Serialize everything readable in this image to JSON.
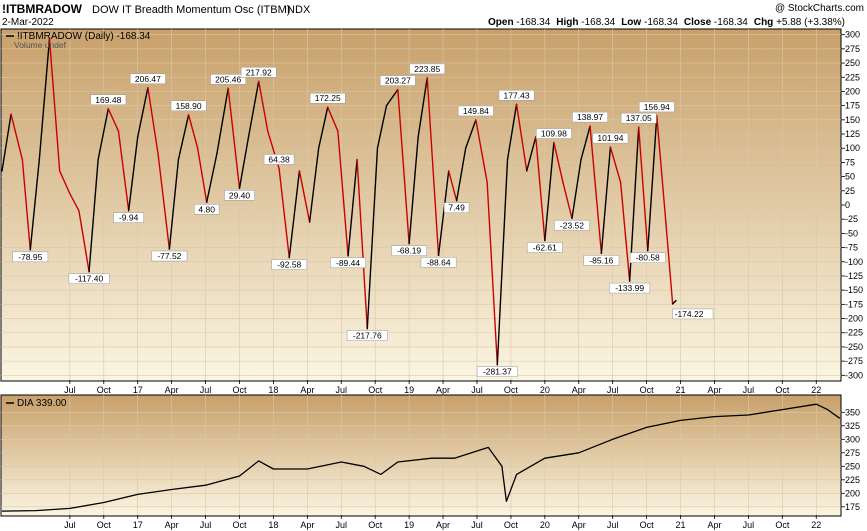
{
  "header": {
    "symbol": "!ITBMRADOW",
    "name": "DOW IT Breadth Momentum Osc (ITBM)",
    "exchange": "INDX",
    "date": "2-Mar-2022",
    "copyright": "@ StockCharts.com",
    "ohlc": "Open -168.34  High -168.34  Low -168.34  Close -168.34  Chg +5.88 (+3.38%)",
    "ohlc_parts": [
      {
        "label": "Open",
        "value": "-168.34"
      },
      {
        "label": "High",
        "value": "-168.34"
      },
      {
        "label": "Low",
        "value": "-168.34"
      },
      {
        "label": "Close",
        "value": "-168.34"
      },
      {
        "label": "Chg",
        "value": "+5.88 (+3.38%)"
      }
    ]
  },
  "colors": {
    "up": "#000000",
    "down": "#cc0000",
    "panel_top": "#c8a06a",
    "panel_bottom": "#fbf5e2",
    "grid": "#d9c9a6"
  },
  "chart_data": [
    {
      "type": "line",
      "legend": "!ITBMRADOW (Daily) -168.34",
      "legend_sub": "Volume undef",
      "ylim": [
        -310,
        310
      ],
      "y_ticks": [
        300,
        275,
        250,
        225,
        200,
        175,
        150,
        125,
        100,
        75,
        50,
        25,
        0,
        -25,
        -50,
        -75,
        -100,
        -125,
        -150,
        -175,
        -200,
        -225,
        -250,
        -275,
        -300
      ],
      "y_tick_labels": [
        "300",
        "275",
        "250",
        "225",
        "200",
        "175",
        "150",
        "125",
        "100",
        "75",
        "50",
        "25",
        "0",
        "-25",
        "-50",
        "-75",
        "-100",
        "-125",
        "-150",
        "-175",
        "-200",
        "-225",
        "-250",
        "-275",
        "-300"
      ],
      "x_tick_labels": [
        "Jul",
        "Oct",
        "17",
        "Apr",
        "Jul",
        "Oct",
        "18",
        "Apr",
        "Jul",
        "Oct",
        "19",
        "Apr",
        "Jul",
        "Oct",
        "20",
        "Apr",
        "Jul",
        "Oct",
        "21",
        "Apr",
        "Jul",
        "Oct",
        "22"
      ],
      "x_tick_months": [
        6,
        9,
        12,
        15,
        18,
        21,
        24,
        27,
        30,
        33,
        36,
        39,
        42,
        45,
        48,
        51,
        54,
        57,
        60,
        63,
        66,
        69,
        72
      ],
      "x_range_months": [
        0,
        74.1
      ],
      "points": [
        [
          0,
          60
        ],
        [
          0.8,
          160
        ],
        [
          1.8,
          80
        ],
        [
          2.5,
          -78.95
        ],
        [
          3.3,
          80
        ],
        [
          4.2,
          293
        ],
        [
          5.1,
          60
        ],
        [
          6,
          20
        ],
        [
          6.8,
          -10
        ],
        [
          7.7,
          -117.4
        ],
        [
          8.5,
          80
        ],
        [
          9.4,
          169.48
        ],
        [
          10.3,
          130
        ],
        [
          11.2,
          -9.94
        ],
        [
          12,
          120
        ],
        [
          12.9,
          206.47
        ],
        [
          13.8,
          90
        ],
        [
          14.8,
          -77.52
        ],
        [
          15.6,
          80
        ],
        [
          16.5,
          158.9
        ],
        [
          17.3,
          100
        ],
        [
          18.1,
          4.8
        ],
        [
          19,
          90
        ],
        [
          20,
          205.46
        ],
        [
          21,
          29.4
        ],
        [
          21.8,
          120
        ],
        [
          22.7,
          217.92
        ],
        [
          23.5,
          130
        ],
        [
          24.5,
          64.38
        ],
        [
          25.4,
          -92.58
        ],
        [
          26.3,
          60
        ],
        [
          27.2,
          -30
        ],
        [
          28,
          100
        ],
        [
          28.8,
          172.25
        ],
        [
          29.7,
          130
        ],
        [
          30.6,
          -89.44
        ],
        [
          31.4,
          80
        ],
        [
          32.3,
          -217.76
        ],
        [
          33.2,
          100
        ],
        [
          34,
          175
        ],
        [
          35,
          203.27
        ],
        [
          36,
          -68.19
        ],
        [
          36.8,
          120
        ],
        [
          37.6,
          223.85
        ],
        [
          38.6,
          -88.64
        ],
        [
          39.5,
          60
        ],
        [
          40.2,
          7.49
        ],
        [
          41,
          100
        ],
        [
          41.9,
          149.84
        ],
        [
          42.9,
          40
        ],
        [
          43.8,
          -281.37
        ],
        [
          44.7,
          80
        ],
        [
          45.5,
          177.43
        ],
        [
          46.4,
          60
        ],
        [
          47.2,
          120
        ],
        [
          48,
          -62.61
        ],
        [
          48.8,
          109.98
        ],
        [
          49.6,
          40
        ],
        [
          50.4,
          -23.52
        ],
        [
          51.2,
          80
        ],
        [
          52,
          138.97
        ],
        [
          53,
          -85.16
        ],
        [
          53.8,
          101.94
        ],
        [
          54.7,
          40
        ],
        [
          55.5,
          -133.99
        ],
        [
          56.3,
          137.05
        ],
        [
          57.1,
          -80.58
        ],
        [
          57.9,
          156.94
        ],
        [
          58.7,
          -30
        ],
        [
          59.3,
          -174.22
        ],
        [
          59.6,
          -168.34
        ]
      ],
      "labels": [
        {
          "text": "-78.95",
          "at": 2.5,
          "value": -78.95,
          "pos": "below"
        },
        {
          "text": "-117.40",
          "at": 7.7,
          "value": -117.4,
          "pos": "below"
        },
        {
          "text": "169.48",
          "at": 9.4,
          "value": 169.48,
          "pos": "above"
        },
        {
          "text": "-9.94",
          "at": 11.2,
          "value": -9.94,
          "pos": "below"
        },
        {
          "text": "206.47",
          "at": 12.9,
          "value": 206.47,
          "pos": "above"
        },
        {
          "text": "-77.52",
          "at": 14.8,
          "value": -77.52,
          "pos": "below"
        },
        {
          "text": "158.90",
          "at": 16.5,
          "value": 158.9,
          "pos": "above"
        },
        {
          "text": "4.80",
          "at": 18.1,
          "value": 4.8,
          "pos": "below"
        },
        {
          "text": "205.46",
          "at": 20,
          "value": 205.46,
          "pos": "above"
        },
        {
          "text": "29.40",
          "at": 21,
          "value": 29.4,
          "pos": "below"
        },
        {
          "text": "217.92",
          "at": 22.7,
          "value": 217.92,
          "pos": "above"
        },
        {
          "text": "64.38",
          "at": 24.5,
          "value": 64.38,
          "pos": "above"
        },
        {
          "text": "-92.58",
          "at": 25.4,
          "value": -92.58,
          "pos": "below"
        },
        {
          "text": "172.25",
          "at": 28.8,
          "value": 172.25,
          "pos": "above"
        },
        {
          "text": "-89.44",
          "at": 30.6,
          "value": -89.44,
          "pos": "below"
        },
        {
          "text": "-217.76",
          "at": 32.3,
          "value": -217.76,
          "pos": "below"
        },
        {
          "text": "203.27",
          "at": 35,
          "value": 203.27,
          "pos": "above"
        },
        {
          "text": "-68.19",
          "at": 36,
          "value": -68.19,
          "pos": "below"
        },
        {
          "text": "223.85",
          "at": 37.6,
          "value": 223.85,
          "pos": "above"
        },
        {
          "text": "-88.64",
          "at": 38.6,
          "value": -88.64,
          "pos": "below"
        },
        {
          "text": "7.49",
          "at": 40.2,
          "value": 7.49,
          "pos": "below"
        },
        {
          "text": "149.84",
          "at": 41.9,
          "value": 149.84,
          "pos": "above"
        },
        {
          "text": "-281.37",
          "at": 43.8,
          "value": -281.37,
          "pos": "below"
        },
        {
          "text": "177.43",
          "at": 45.5,
          "value": 177.43,
          "pos": "above"
        },
        {
          "text": "-62.61",
          "at": 48,
          "value": -62.61,
          "pos": "below"
        },
        {
          "text": "109.98",
          "at": 48.8,
          "value": 109.98,
          "pos": "above"
        },
        {
          "text": "-23.52",
          "at": 50.4,
          "value": -23.52,
          "pos": "below"
        },
        {
          "text": "138.97",
          "at": 52,
          "value": 138.97,
          "pos": "above"
        },
        {
          "text": "-85.16",
          "at": 53,
          "value": -85.16,
          "pos": "below"
        },
        {
          "text": "101.94",
          "at": 53.8,
          "value": 101.94,
          "pos": "above"
        },
        {
          "text": "-133.99",
          "at": 55.5,
          "value": -133.99,
          "pos": "below"
        },
        {
          "text": "137.05",
          "at": 56.3,
          "value": 137.05,
          "pos": "above"
        },
        {
          "text": "-80.58",
          "at": 57.1,
          "value": -80.58,
          "pos": "below"
        },
        {
          "text": "156.94",
          "at": 57.9,
          "value": 156.94,
          "pos": "above"
        },
        {
          "text": "-174.22",
          "at": 59.3,
          "value": -174.22,
          "pos": "right"
        }
      ],
      "grid": true
    },
    {
      "type": "line",
      "legend": "DIA 339.00",
      "ylim": [
        158,
        382
      ],
      "y_ticks": [
        350,
        325,
        300,
        275,
        250,
        225,
        200,
        175
      ],
      "y_tick_labels": [
        "350",
        "325",
        "300",
        "275",
        "250",
        "225",
        "200",
        "175"
      ],
      "x_tick_labels": [
        "Jul",
        "Oct",
        "17",
        "Apr",
        "Jul",
        "Oct",
        "18",
        "Apr",
        "Jul",
        "Oct",
        "19",
        "Apr",
        "Jul",
        "Oct",
        "20",
        "Apr",
        "Jul",
        "Oct",
        "21",
        "Apr",
        "Jul",
        "Oct",
        "22"
      ],
      "points": [
        [
          0,
          167
        ],
        [
          3,
          168
        ],
        [
          6,
          172
        ],
        [
          9,
          183
        ],
        [
          12,
          198
        ],
        [
          15,
          207
        ],
        [
          18,
          215
        ],
        [
          21,
          232
        ],
        [
          22.7,
          260
        ],
        [
          24,
          245
        ],
        [
          27,
          245
        ],
        [
          30,
          258
        ],
        [
          32,
          250
        ],
        [
          33.5,
          235
        ],
        [
          35,
          258
        ],
        [
          38,
          265
        ],
        [
          40,
          265
        ],
        [
          43,
          285
        ],
        [
          44.2,
          250
        ],
        [
          44.6,
          185
        ],
        [
          45.5,
          235
        ],
        [
          48,
          265
        ],
        [
          51,
          275
        ],
        [
          54,
          300
        ],
        [
          57,
          322
        ],
        [
          60,
          335
        ],
        [
          63,
          342
        ],
        [
          66,
          345
        ],
        [
          69,
          355
        ],
        [
          72,
          365
        ],
        [
          73,
          355
        ],
        [
          74,
          340
        ],
        [
          74.1,
          339
        ]
      ],
      "grid": true
    }
  ]
}
